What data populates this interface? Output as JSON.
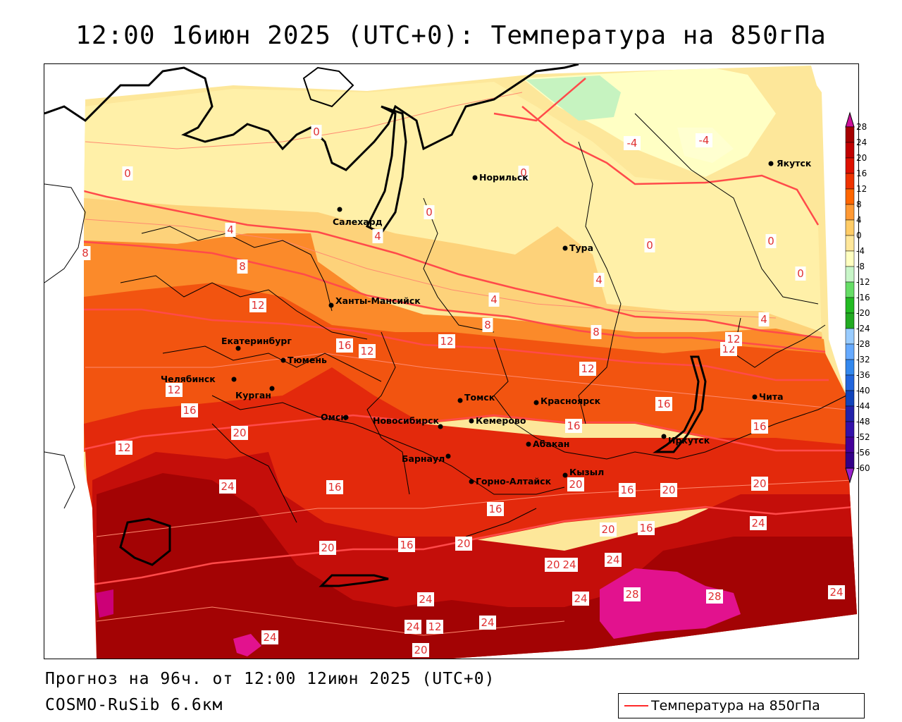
{
  "title": "12:00 16июн 2025 (UTC+0): Температура на 850гПа",
  "footer": {
    "forecast": "Прогноз на 96ч. от 12:00 12июн 2025 (UTC+0)",
    "model": "COSMO-RuSib 6.6км"
  },
  "legend": {
    "label": "Температура на 850гПа",
    "line_color": "#ff2a2a"
  },
  "colorbar": {
    "ticks": [
      "28",
      "24",
      "20",
      "16",
      "12",
      "8",
      "4",
      "0",
      "-4",
      "-8",
      "-12",
      "-16",
      "-20",
      "-24",
      "-28",
      "-32",
      "-36",
      "-40",
      "-44",
      "-48",
      "-52",
      "-56",
      "-60"
    ],
    "colors": [
      "#a50000",
      "#c00000",
      "#dd1100",
      "#ee3300",
      "#ff6600",
      "#ff9933",
      "#ffcc66",
      "#ffe79a",
      "#ffffc0",
      "#c8f5c8",
      "#66dd66",
      "#22bb22",
      "#22aa22",
      "#99ccff",
      "#66aaff",
      "#3388ee",
      "#2266dd",
      "#1144bb",
      "#2222aa",
      "#3311aa",
      "#440099",
      "#330088"
    ],
    "top_arrow_color": "#cc1199",
    "bottom_arrow_color": "#9922cc"
  },
  "cities": [
    {
      "name": "Якутск"
    },
    {
      "name": "Норильск"
    },
    {
      "name": "Салехард"
    },
    {
      "name": "Тура"
    },
    {
      "name": "Ханты-Мансийск"
    },
    {
      "name": "Екатеринбург"
    },
    {
      "name": "Тюмень"
    },
    {
      "name": "Челябинск"
    },
    {
      "name": "Курган"
    },
    {
      "name": "Омск"
    },
    {
      "name": "Новосибирск"
    },
    {
      "name": "Томск"
    },
    {
      "name": "Кемерово"
    },
    {
      "name": "Красноярск"
    },
    {
      "name": "Барнаул"
    },
    {
      "name": "Абакан"
    },
    {
      "name": "Горно-Алтайск"
    },
    {
      "name": "Кызыл"
    },
    {
      "name": "Иркутск"
    },
    {
      "name": "Чита"
    }
  ],
  "isotherm_labels": [
    "0",
    "0",
    "0",
    "0",
    "0",
    "0",
    "0",
    "-4",
    "-4",
    "4",
    "4",
    "4",
    "4",
    "4",
    "8",
    "8",
    "8",
    "8",
    "12",
    "12",
    "12",
    "12",
    "12",
    "12",
    "12",
    "12",
    "16",
    "16",
    "16",
    "16",
    "16",
    "16",
    "16",
    "16",
    "16",
    "16",
    "20",
    "20",
    "20",
    "20",
    "20",
    "20",
    "20",
    "20",
    "20",
    "24",
    "24",
    "24",
    "24",
    "24",
    "24",
    "24",
    "24",
    "24",
    "24",
    "28",
    "28",
    "12"
  ]
}
